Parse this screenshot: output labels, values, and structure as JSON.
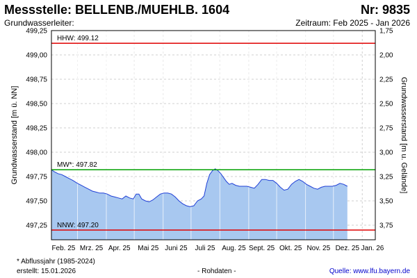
{
  "header": {
    "title": "Messstelle: BELLENB./MUEHLB. 1604",
    "nr": "Nr: 9835",
    "aquifer": "Grundwasserleiter:",
    "period": "Zeitraum: Feb 2025 - Jan 2026"
  },
  "footer": {
    "footnote": "* Abflussjahr (1985-2024)",
    "created": "erstellt:  15.01.2026",
    "rawdata": "- Rohdaten -",
    "source": "Quelle: www.lfu.bayern.de"
  },
  "colors": {
    "hhw": "#e00000",
    "mw": "#00a000",
    "nnw": "#e00000",
    "area_fill": "#a8c8f0",
    "line": "#1f3fd6",
    "grid": "#cfcfcf"
  },
  "chart_data": {
    "type": "area",
    "xlabel": "",
    "ylabel": "Grundwasserstand [m ü. NN]",
    "ylabel_right": "Grundwasserstand [m u. Gelände]",
    "ylim": [
      497.1,
      499.25
    ],
    "ylim_right": [
      3.92,
      1.75
    ],
    "y_ticks": [
      "497,25",
      "497,50",
      "497,75",
      "498,00",
      "498,25",
      "498,50",
      "498,75",
      "499,00",
      "499,25"
    ],
    "y_ticks_right": [
      "3,75",
      "3,50",
      "3,25",
      "3,00",
      "2,75",
      "2,50",
      "2,25",
      "2,00",
      "1,75"
    ],
    "x_ticks": [
      "Feb. 25",
      "Mrz. 25",
      "Apr. 25",
      "Mai 25",
      "Juni 25",
      "Juli 25",
      "Aug. 25",
      "Sept. 25",
      "Okt. 25",
      "Nov. 25",
      "Dez. 25",
      "Jan. 26"
    ],
    "reference_lines": [
      {
        "label": "HHW: 499.12",
        "value": 499.12
      },
      {
        "label": "MW*: 497.82",
        "value": 497.82
      },
      {
        "label": "NNW: 497.20",
        "value": 497.2
      }
    ],
    "series": [
      {
        "x": [
          "2025-02-01",
          "2025-02-04",
          "2025-02-08",
          "2025-02-12",
          "2025-02-16",
          "2025-02-20",
          "2025-02-24",
          "2025-03-01",
          "2025-03-05",
          "2025-03-09",
          "2025-03-13",
          "2025-03-17",
          "2025-03-21",
          "2025-03-25",
          "2025-03-29",
          "2025-04-02",
          "2025-04-06",
          "2025-04-10",
          "2025-04-14",
          "2025-04-18",
          "2025-04-22",
          "2025-04-26",
          "2025-04-30",
          "2025-05-03",
          "2025-05-06",
          "2025-05-09",
          "2025-05-13",
          "2025-05-17",
          "2025-05-21",
          "2025-05-25",
          "2025-05-29",
          "2025-06-02",
          "2025-06-06",
          "2025-06-10",
          "2025-06-14",
          "2025-06-18",
          "2025-06-22",
          "2025-06-26",
          "2025-06-30",
          "2025-07-04",
          "2025-07-08",
          "2025-07-12",
          "2025-07-15",
          "2025-07-18",
          "2025-07-21",
          "2025-07-24",
          "2025-07-27",
          "2025-07-30",
          "2025-08-02",
          "2025-08-05",
          "2025-08-08",
          "2025-08-11",
          "2025-08-14",
          "2025-08-18",
          "2025-08-22",
          "2025-08-26",
          "2025-08-30",
          "2025-09-03",
          "2025-09-07",
          "2025-09-11",
          "2025-09-15",
          "2025-09-19",
          "2025-09-23",
          "2025-09-27",
          "2025-10-01",
          "2025-10-05",
          "2025-10-09",
          "2025-10-13",
          "2025-10-17",
          "2025-10-21",
          "2025-10-25",
          "2025-10-29",
          "2025-11-02",
          "2025-11-06",
          "2025-11-10",
          "2025-11-14",
          "2025-11-18",
          "2025-11-22",
          "2025-11-26",
          "2025-11-30",
          "2025-12-04",
          "2025-12-08",
          "2025-12-12",
          "2025-12-16"
        ],
        "y": [
          497.82,
          497.8,
          497.78,
          497.77,
          497.75,
          497.73,
          497.71,
          497.68,
          497.66,
          497.64,
          497.62,
          497.6,
          497.59,
          497.58,
          497.58,
          497.57,
          497.55,
          497.54,
          497.53,
          497.52,
          497.55,
          497.53,
          497.52,
          497.57,
          497.57,
          497.52,
          497.5,
          497.49,
          497.51,
          497.54,
          497.57,
          497.58,
          497.58,
          497.57,
          497.54,
          497.5,
          497.47,
          497.45,
          497.44,
          497.45,
          497.5,
          497.52,
          497.55,
          497.68,
          497.77,
          497.81,
          497.83,
          497.81,
          497.78,
          497.74,
          497.7,
          497.67,
          497.68,
          497.66,
          497.65,
          497.65,
          497.65,
          497.64,
          497.63,
          497.67,
          497.72,
          497.72,
          497.71,
          497.71,
          497.68,
          497.64,
          497.61,
          497.62,
          497.67,
          497.7,
          497.72,
          497.7,
          497.67,
          497.65,
          497.63,
          497.62,
          497.64,
          497.65,
          497.65,
          497.65,
          497.66,
          497.68,
          497.67,
          497.65
        ]
      }
    ]
  }
}
